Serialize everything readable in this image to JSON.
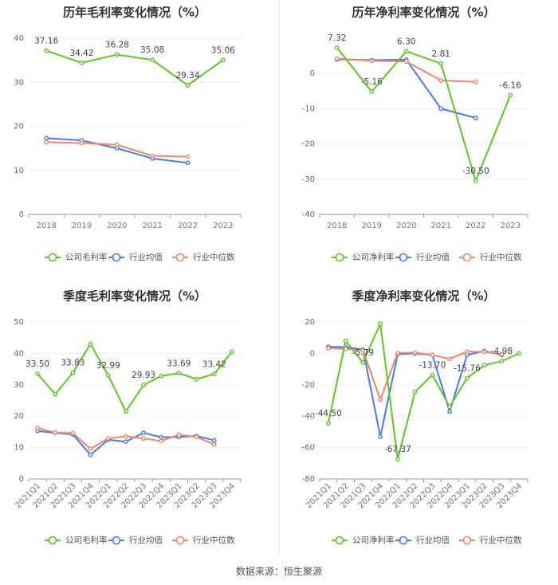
{
  "colors": {
    "company": "#5ec62b",
    "industry_avg": "#4a7be6",
    "industry_median": "#f1866a"
  },
  "legend": {
    "company_gross": "公司毛利率",
    "company_net": "公司净利率",
    "avg": "行业均值",
    "median": "行业中位数"
  },
  "footer": "数据来源：恒生聚源",
  "chart_data": [
    {
      "type": "line",
      "title": "历年毛利率变化情况（%）",
      "categories": [
        "2018",
        "2019",
        "2020",
        "2021",
        "2022",
        "2023"
      ],
      "ylim": [
        0,
        40
      ],
      "yticks": [
        0,
        10,
        20,
        30,
        40
      ],
      "grid": true,
      "legend_position": "bottom",
      "series": [
        {
          "name": "公司毛利率",
          "key": "company",
          "values": [
            37.16,
            34.42,
            36.28,
            35.08,
            29.34,
            35.06
          ],
          "labels": [
            "37.16",
            "34.42",
            "36.28",
            "35.08",
            "29.34",
            "35.06"
          ]
        },
        {
          "name": "行业均值",
          "key": "avg",
          "values": [
            17.3,
            16.8,
            15.0,
            12.7,
            11.7,
            null
          ]
        },
        {
          "name": "行业中位数",
          "key": "median",
          "values": [
            16.4,
            16.2,
            15.8,
            13.3,
            13.1,
            null
          ]
        }
      ]
    },
    {
      "type": "line",
      "title": "历年净利率变化情况（%）",
      "categories": [
        "2018",
        "2019",
        "2020",
        "2021",
        "2022",
        "2023"
      ],
      "ylim": [
        -40,
        10
      ],
      "yticks": [
        -40,
        -30,
        -20,
        -10,
        0
      ],
      "grid": true,
      "legend_position": "bottom",
      "series": [
        {
          "name": "公司净利率",
          "key": "company",
          "values": [
            7.32,
            -5.16,
            6.3,
            2.81,
            -30.5,
            -6.16
          ],
          "labels": [
            "7.32",
            "-5.16",
            "6.30",
            "2.81",
            "-30.50",
            "-6.16"
          ]
        },
        {
          "name": "行业均值",
          "key": "avg",
          "values": [
            4.0,
            3.8,
            3.9,
            -10.0,
            -12.6,
            null
          ]
        },
        {
          "name": "行业中位数",
          "key": "median",
          "values": [
            4.2,
            3.6,
            3.4,
            -2.0,
            -2.4,
            null
          ]
        }
      ]
    },
    {
      "type": "line",
      "title": "季度毛利率变化情况（%）",
      "categories": [
        "2021Q1",
        "2021Q2",
        "2021Q3",
        "2021Q4",
        "2022Q1",
        "2022Q2",
        "2022Q3",
        "2022Q4",
        "2023Q1",
        "2023Q2",
        "2023Q3",
        "2023Q4"
      ],
      "ylim": [
        0,
        50
      ],
      "yticks": [
        0,
        10,
        20,
        30,
        40,
        50
      ],
      "grid": true,
      "legend_position": "bottom",
      "series": [
        {
          "name": "公司毛利率",
          "key": "company",
          "values": [
            33.5,
            27.0,
            33.83,
            43.0,
            32.99,
            21.5,
            29.93,
            32.8,
            33.69,
            31.8,
            33.42,
            40.5
          ],
          "labels": [
            "33.50",
            "",
            "33.83",
            "",
            "32.99",
            "",
            "29.93",
            "",
            "33.69",
            "",
            "33.42",
            ""
          ]
        },
        {
          "name": "行业均值",
          "key": "avg",
          "values": [
            15.3,
            14.7,
            14.2,
            7.7,
            12.5,
            11.9,
            14.7,
            13.3,
            13.4,
            13.7,
            12.3,
            null
          ]
        },
        {
          "name": "行业中位数",
          "key": "median",
          "values": [
            16.2,
            14.8,
            14.6,
            9.6,
            12.9,
            13.6,
            12.9,
            12.1,
            14.1,
            13.4,
            11.0,
            null
          ]
        }
      ]
    },
    {
      "type": "line",
      "title": "季度净利率变化情况（%）",
      "categories": [
        "2021Q1",
        "2021Q2",
        "2021Q3",
        "2021Q4",
        "2022Q1",
        "2022Q2",
        "2022Q3",
        "2022Q4",
        "2023Q1",
        "2023Q2",
        "2023Q3",
        "2023Q4"
      ],
      "ylim": [
        -80,
        20
      ],
      "yticks": [
        -80,
        -60,
        -40,
        -20,
        0,
        20
      ],
      "grid": true,
      "legend_position": "bottom",
      "series": [
        {
          "name": "公司净利率",
          "key": "company",
          "values": [
            -44.5,
            8.0,
            -5.79,
            19.0,
            -67.37,
            -24.5,
            -13.7,
            -34.0,
            -15.76,
            -7.5,
            -4.98,
            0.0
          ],
          "labels": [
            "-44.50",
            "",
            "-5.79",
            "",
            "-67.37",
            "",
            "-13.70",
            "",
            "-15.76",
            "",
            "-4.98",
            ""
          ]
        },
        {
          "name": "行业均值",
          "key": "avg",
          "values": [
            4.2,
            4.0,
            2.5,
            -53.0,
            -0.5,
            0.0,
            -1.0,
            -37.0,
            -1.0,
            1.5,
            -1.0,
            null
          ]
        },
        {
          "name": "行业中位数",
          "key": "median",
          "values": [
            3.3,
            2.8,
            2.0,
            -29.5,
            0.2,
            0.5,
            -1.0,
            -3.5,
            1.0,
            1.0,
            -0.5,
            null
          ]
        }
      ]
    }
  ]
}
